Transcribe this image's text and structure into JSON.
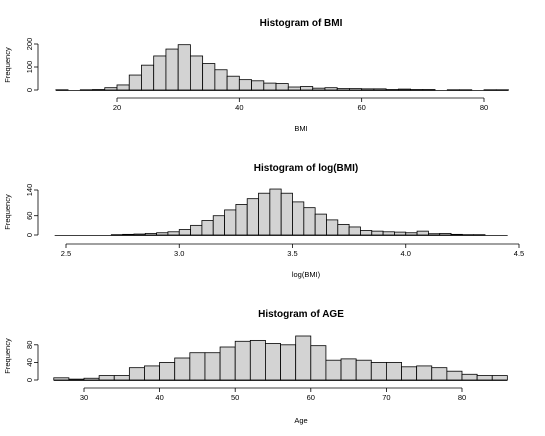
{
  "chart_data": [
    {
      "type": "bar",
      "title": "Histogram of BMI",
      "xlabel": "BMI",
      "ylabel": "Frequency",
      "xlim": [
        10,
        84
      ],
      "ylim": [
        0,
        200
      ],
      "xticks": [
        "20",
        "40",
        "60",
        "80"
      ],
      "yticks": [
        "0",
        "100",
        "200"
      ],
      "bin_width": 2,
      "bin_start": 10,
      "values": [
        1,
        0,
        1,
        2,
        10,
        22,
        65,
        108,
        148,
        178,
        197,
        148,
        115,
        88,
        60,
        45,
        40,
        30,
        28,
        13,
        15,
        8,
        10,
        6,
        6,
        5,
        5,
        2,
        4,
        2,
        2,
        0,
        1,
        1,
        0,
        1,
        1
      ]
    },
    {
      "type": "bar",
      "title": "Histogram of log(BMI)",
      "xlabel": "log(BMI)",
      "ylabel": "Frequency",
      "xlim": [
        2.45,
        4.45
      ],
      "ylim": [
        0,
        140
      ],
      "xticks": [
        "2.5",
        "3.0",
        "3.5",
        "4.0",
        "4.5"
      ],
      "yticks": [
        "0",
        "60",
        "140"
      ],
      "bin_width": 0.05,
      "bin_start": 2.45,
      "values": [
        0,
        0,
        0,
        0,
        0,
        1,
        2,
        3,
        5,
        7,
        10,
        17,
        30,
        45,
        60,
        78,
        95,
        113,
        130,
        143,
        130,
        103,
        85,
        65,
        47,
        33,
        25,
        14,
        12,
        10,
        9,
        7,
        12,
        4,
        5,
        2,
        1,
        1,
        0,
        0
      ]
    },
    {
      "type": "bar",
      "title": "Histogram of AGE",
      "xlabel": "Age",
      "ylabel": "Frequency",
      "xlim": [
        26,
        86
      ],
      "ylim": [
        0,
        100
      ],
      "xticks": [
        "30",
        "40",
        "50",
        "60",
        "70",
        "80"
      ],
      "yticks": [
        "0",
        "40",
        "80"
      ],
      "bin_width": 2,
      "bin_start": 26,
      "values": [
        5,
        2,
        4,
        10,
        10,
        28,
        32,
        40,
        50,
        62,
        62,
        75,
        88,
        90,
        83,
        80,
        100,
        78,
        45,
        48,
        45,
        40,
        40,
        30,
        32,
        28,
        20,
        13,
        10,
        10
      ]
    }
  ]
}
